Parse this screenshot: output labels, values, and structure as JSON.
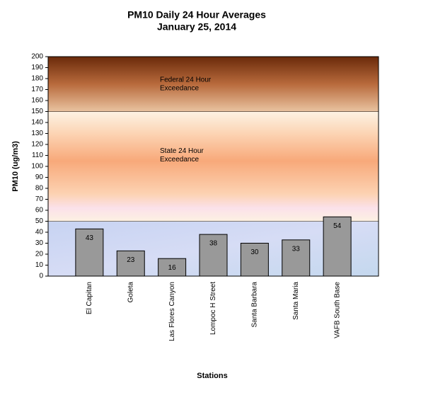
{
  "chart_data": {
    "type": "bar",
    "title": "PM10 Daily 24 Hour Averages",
    "subtitle": "January 25, 2014",
    "x_label": "Stations",
    "y_label": "PM10 (ug/m3)",
    "categories": [
      "El Capitan",
      "Goleta",
      "Las Flores Canyon",
      "Lompoc H Street",
      "Santa Barbara",
      "Santa Maria",
      "VAFB South Base"
    ],
    "values": [
      43,
      23,
      16,
      38,
      30,
      33,
      54
    ],
    "color": "#999999",
    "ylim": [
      0,
      200
    ],
    "yticks": [
      0,
      10,
      20,
      30,
      40,
      50,
      60,
      70,
      80,
      90,
      100,
      110,
      120,
      130,
      140,
      150,
      160,
      170,
      180,
      190,
      200
    ],
    "bands": [
      {
        "lower": 0,
        "upper": 50
      },
      {
        "lower": 50,
        "upper": 150,
        "label_lines": [
          "State 24 Hour",
          "Exceedance"
        ]
      },
      {
        "lower": 150,
        "upper": 200,
        "label_lines": [
          "Federal 24 Hour",
          "Exceedance"
        ]
      }
    ]
  }
}
